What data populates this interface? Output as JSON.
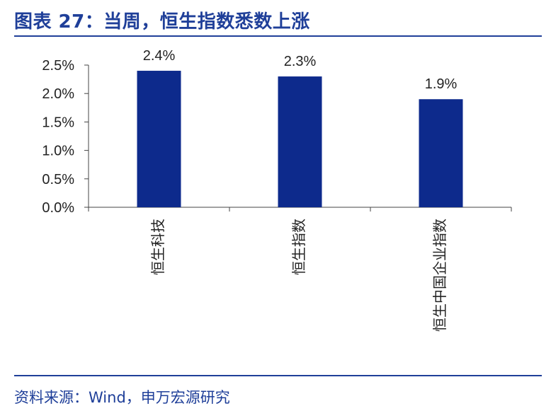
{
  "title": "图表 27：当周，恒生指数悉数上涨",
  "source": "资料来源：Wind，申万宏源研究",
  "colors": {
    "bar": "#0d2a8c",
    "accent": "#1f3f99",
    "axis": "#444444"
  },
  "chart_data": {
    "type": "bar",
    "categories": [
      "恒生科技",
      "恒生指数",
      "恒生中国企业指数"
    ],
    "values": [
      2.4,
      2.3,
      1.9
    ],
    "value_labels": [
      "2.4%",
      "2.3%",
      "1.9%"
    ],
    "ylim": [
      0,
      2.5
    ],
    "yticks": [
      "0.0%",
      "0.5%",
      "1.0%",
      "1.5%",
      "2.0%",
      "2.5%"
    ],
    "grid": false,
    "legend": "none"
  }
}
